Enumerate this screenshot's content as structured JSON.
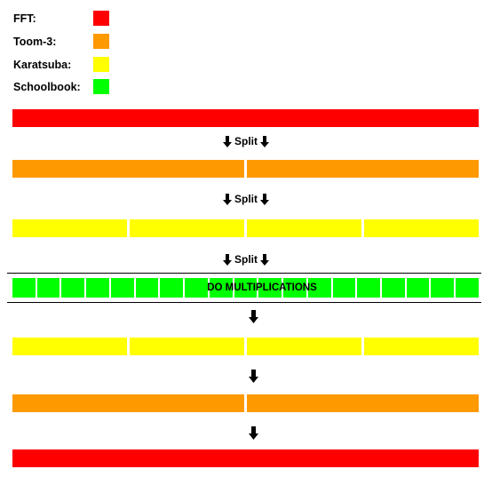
{
  "legend": [
    {
      "label": "FFT:",
      "color": "#ff0000"
    },
    {
      "label": "Toom-3:",
      "color": "#ff9900"
    },
    {
      "label": "Karatsuba:",
      "color": "#ffff00"
    },
    {
      "label": "Schoolbook:",
      "color": "#00ff00"
    }
  ],
  "split_label": "Split",
  "multiply_label": "DO MULTIPLICATIONS",
  "stages": {
    "fft_segments": 1,
    "toom3_segments": 2,
    "karatsuba_segments": 4,
    "schoolbook_segments": 19
  }
}
